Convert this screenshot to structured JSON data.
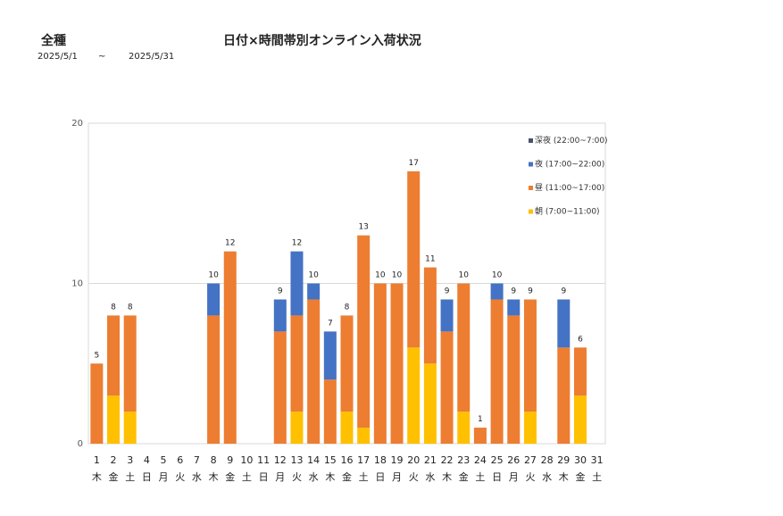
{
  "header": {
    "category": "全種",
    "title": "日付×時間帯別オンライン入荷状況",
    "date_from": "2025/5/1",
    "date_sep": "~",
    "date_to": "2025/5/31"
  },
  "chart_data": {
    "type": "bar",
    "stacked": true,
    "title": "日付×時間帯別オンライン入荷状況",
    "xlabel": "",
    "ylabel": "",
    "ylim": [
      0,
      20
    ],
    "yticks": [
      0,
      10,
      20
    ],
    "grid": true,
    "legend_position": "top-right",
    "categories": [
      "1",
      "2",
      "3",
      "4",
      "5",
      "6",
      "7",
      "8",
      "9",
      "10",
      "11",
      "12",
      "13",
      "14",
      "15",
      "16",
      "17",
      "18",
      "19",
      "20",
      "21",
      "22",
      "23",
      "24",
      "25",
      "26",
      "27",
      "28",
      "29",
      "30",
      "31"
    ],
    "weekdays": [
      "木",
      "金",
      "土",
      "日",
      "月",
      "火",
      "水",
      "木",
      "金",
      "土",
      "日",
      "月",
      "火",
      "水",
      "木",
      "金",
      "土",
      "日",
      "月",
      "火",
      "水",
      "木",
      "金",
      "土",
      "日",
      "月",
      "火",
      "水",
      "木",
      "金",
      "土"
    ],
    "series": [
      {
        "name": "朝 (7:00~11:00)",
        "color": "#FFC000",
        "values": [
          0,
          3,
          2,
          0,
          0,
          0,
          0,
          0,
          0,
          0,
          0,
          0,
          2,
          0,
          0,
          2,
          1,
          0,
          0,
          6,
          5,
          0,
          2,
          0,
          0,
          0,
          2,
          0,
          0,
          3,
          0
        ]
      },
      {
        "name": "昼 (11:00~17:00)",
        "color": "#ED7D31",
        "values": [
          5,
          5,
          6,
          0,
          0,
          0,
          0,
          8,
          12,
          0,
          0,
          7,
          6,
          9,
          4,
          6,
          12,
          10,
          10,
          11,
          6,
          7,
          8,
          1,
          9,
          8,
          7,
          0,
          6,
          3,
          0
        ]
      },
      {
        "name": "夜 (17:00~22:00)",
        "color": "#4472C4",
        "values": [
          0,
          0,
          0,
          0,
          0,
          0,
          0,
          2,
          0,
          0,
          0,
          2,
          4,
          1,
          3,
          0,
          0,
          0,
          0,
          0,
          0,
          2,
          0,
          0,
          1,
          1,
          0,
          0,
          3,
          0,
          0
        ]
      },
      {
        "name": "深夜 (22:00~7:00)",
        "color": "#44546A",
        "values": [
          0,
          0,
          0,
          0,
          0,
          0,
          0,
          0,
          0,
          0,
          0,
          0,
          0,
          0,
          0,
          0,
          0,
          0,
          0,
          0,
          0,
          0,
          0,
          0,
          0,
          0,
          0,
          0,
          0,
          0,
          0
        ]
      }
    ],
    "totals": [
      5,
      8,
      8,
      null,
      null,
      null,
      null,
      10,
      12,
      null,
      null,
      9,
      12,
      10,
      7,
      8,
      13,
      10,
      10,
      17,
      11,
      9,
      10,
      1,
      10,
      9,
      9,
      null,
      9,
      6,
      null
    ],
    "legend_order": [
      "深夜 (22:00~7:00)",
      "夜 (17:00~22:00)",
      "昼 (11:00~17:00)",
      "朝 (7:00~11:00)"
    ]
  }
}
